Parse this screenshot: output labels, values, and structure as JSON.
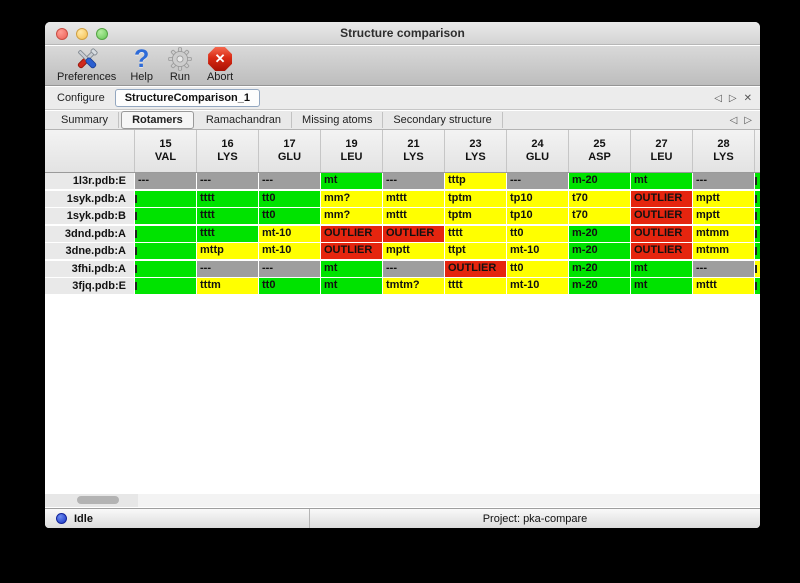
{
  "window": {
    "title": "Structure comparison"
  },
  "toolbar": {
    "items": [
      {
        "label": "Preferences",
        "icon": "tools-icon"
      },
      {
        "label": "Help",
        "icon": "help-icon",
        "glyph": "?"
      },
      {
        "label": "Run",
        "icon": "gear-icon"
      },
      {
        "label": "Abort",
        "icon": "abort-icon",
        "glyph": "✕"
      }
    ]
  },
  "configure": {
    "label": "Configure",
    "tab": "StructureComparison_1",
    "nav": {
      "prev": "◁",
      "next": "▷",
      "close": "✕"
    }
  },
  "tabs": {
    "items": [
      "Summary",
      "Rotamers",
      "Ramachandran",
      "Missing atoms",
      "Secondary structure"
    ],
    "selected": "Rotamers",
    "nav": {
      "prev": "◁",
      "next": "▷"
    }
  },
  "table": {
    "palette": {
      "green": "#00e300",
      "yellow": "#ffff00",
      "red": "#e5250f",
      "gray": "#9e9e9e"
    },
    "columns": [
      {
        "num": "15",
        "res": "VAL"
      },
      {
        "num": "16",
        "res": "LYS"
      },
      {
        "num": "17",
        "res": "GLU"
      },
      {
        "num": "19",
        "res": "LEU"
      },
      {
        "num": "21",
        "res": "LYS"
      },
      {
        "num": "23",
        "res": "LYS"
      },
      {
        "num": "24",
        "res": "GLU"
      },
      {
        "num": "25",
        "res": "ASP"
      },
      {
        "num": "27",
        "res": "LEU"
      },
      {
        "num": "28",
        "res": "LYS"
      },
      {
        "num": "",
        "res": "",
        "partial": true
      }
    ],
    "rows": [
      {
        "label": "1l3r.pdb:E",
        "cells": [
          {
            "text": "---",
            "color": "gray"
          },
          {
            "text": "---",
            "color": "gray"
          },
          {
            "text": "---",
            "color": "gray"
          },
          {
            "text": "mt",
            "color": "green"
          },
          {
            "text": "---",
            "color": "gray"
          },
          {
            "text": "tttp",
            "color": "yellow"
          },
          {
            "text": "---",
            "color": "gray"
          },
          {
            "text": "m-20",
            "color": "green"
          },
          {
            "text": "mt",
            "color": "green"
          },
          {
            "text": "---",
            "color": "gray"
          },
          {
            "text": "",
            "color": "green",
            "clip": true
          }
        ]
      },
      {
        "label": "1syk.pdb:A",
        "cells": [
          {
            "text": "",
            "color": "green",
            "clip": true
          },
          {
            "text": "tttt",
            "color": "green"
          },
          {
            "text": "tt0",
            "color": "green"
          },
          {
            "text": "mm?",
            "color": "yellow"
          },
          {
            "text": "mttt",
            "color": "yellow"
          },
          {
            "text": "tptm",
            "color": "yellow"
          },
          {
            "text": "tp10",
            "color": "yellow"
          },
          {
            "text": "t70",
            "color": "yellow"
          },
          {
            "text": "OUTLIER",
            "color": "red"
          },
          {
            "text": "mptt",
            "color": "yellow"
          },
          {
            "text": "",
            "color": "green",
            "clip": true
          }
        ]
      },
      {
        "label": "1syk.pdb:B",
        "cells": [
          {
            "text": "",
            "color": "green",
            "clip": true
          },
          {
            "text": "tttt",
            "color": "green"
          },
          {
            "text": "tt0",
            "color": "green"
          },
          {
            "text": "mm?",
            "color": "yellow"
          },
          {
            "text": "mttt",
            "color": "yellow"
          },
          {
            "text": "tptm",
            "color": "yellow"
          },
          {
            "text": "tp10",
            "color": "yellow"
          },
          {
            "text": "t70",
            "color": "yellow"
          },
          {
            "text": "OUTLIER",
            "color": "red"
          },
          {
            "text": "mptt",
            "color": "yellow"
          },
          {
            "text": "",
            "color": "green",
            "clip": true
          }
        ]
      },
      {
        "label": "3dnd.pdb:A",
        "cells": [
          {
            "text": "",
            "color": "green",
            "clip": true
          },
          {
            "text": "tttt",
            "color": "green"
          },
          {
            "text": "mt-10",
            "color": "yellow"
          },
          {
            "text": "OUTLIER",
            "color": "red"
          },
          {
            "text": "OUTLIER",
            "color": "red"
          },
          {
            "text": "tttt",
            "color": "yellow"
          },
          {
            "text": "tt0",
            "color": "yellow"
          },
          {
            "text": "m-20",
            "color": "green"
          },
          {
            "text": "OUTLIER",
            "color": "red"
          },
          {
            "text": "mtmm",
            "color": "yellow"
          },
          {
            "text": "",
            "color": "green",
            "clip": true
          }
        ]
      },
      {
        "label": "3dne.pdb:A",
        "cells": [
          {
            "text": "",
            "color": "green",
            "clip": true
          },
          {
            "text": "mttp",
            "color": "yellow"
          },
          {
            "text": "mt-10",
            "color": "yellow"
          },
          {
            "text": "OUTLIER",
            "color": "red"
          },
          {
            "text": "mptt",
            "color": "yellow"
          },
          {
            "text": "ttpt",
            "color": "yellow"
          },
          {
            "text": "mt-10",
            "color": "yellow"
          },
          {
            "text": "m-20",
            "color": "green"
          },
          {
            "text": "OUTLIER",
            "color": "red"
          },
          {
            "text": "mtmm",
            "color": "yellow"
          },
          {
            "text": "",
            "color": "green",
            "clip": true
          }
        ]
      },
      {
        "label": "3fhi.pdb:A",
        "cells": [
          {
            "text": "",
            "color": "green",
            "clip": true
          },
          {
            "text": "---",
            "color": "gray"
          },
          {
            "text": "---",
            "color": "gray"
          },
          {
            "text": "mt",
            "color": "green"
          },
          {
            "text": "---",
            "color": "gray"
          },
          {
            "text": "OUTLIER",
            "color": "red"
          },
          {
            "text": "tt0",
            "color": "yellow"
          },
          {
            "text": "m-20",
            "color": "green"
          },
          {
            "text": "mt",
            "color": "green"
          },
          {
            "text": "---",
            "color": "gray"
          },
          {
            "text": "",
            "color": "yellow",
            "clip": true
          }
        ]
      },
      {
        "label": "3fjq.pdb:E",
        "cells": [
          {
            "text": "",
            "color": "green",
            "clip": true
          },
          {
            "text": "tttm",
            "color": "yellow"
          },
          {
            "text": "tt0",
            "color": "green"
          },
          {
            "text": "mt",
            "color": "green"
          },
          {
            "text": "tmtm?",
            "color": "yellow"
          },
          {
            "text": "tttt",
            "color": "yellow"
          },
          {
            "text": "mt-10",
            "color": "yellow"
          },
          {
            "text": "m-20",
            "color": "green"
          },
          {
            "text": "mt",
            "color": "green"
          },
          {
            "text": "mttt",
            "color": "yellow"
          },
          {
            "text": "",
            "color": "green",
            "clip": true
          }
        ]
      }
    ]
  },
  "statusbar": {
    "status": "Idle",
    "project": "Project: pka-compare"
  }
}
